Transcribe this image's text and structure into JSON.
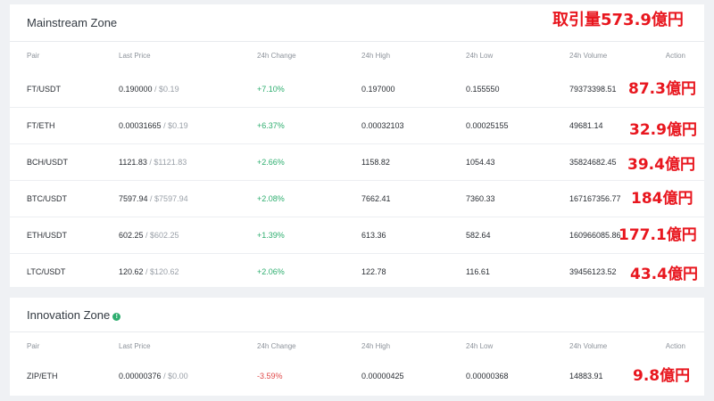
{
  "total_annotation": "取引量573.9億円",
  "mainstream": {
    "title": "Mainstream Zone",
    "headers": {
      "pair": "Pair",
      "last": "Last Price",
      "change": "24h Change",
      "high": "24h High",
      "low": "24h Low",
      "volume": "24h Volume",
      "action": "Action"
    },
    "rows": [
      {
        "pair": "FT/USDT",
        "last": "0.190000",
        "usd": " / $0.19",
        "change": "+7.10%",
        "high": "0.197000",
        "low": "0.155550",
        "volume": "79373398.51",
        "annotation": "87.3億円"
      },
      {
        "pair": "FT/ETH",
        "last": "0.00031665",
        "usd": " / $0.19",
        "change": "+6.37%",
        "high": "0.00032103",
        "low": "0.00025155",
        "volume": "49681.14",
        "annotation": "32.9億円"
      },
      {
        "pair": "BCH/USDT",
        "last": "1121.83",
        "usd": " / $1121.83",
        "change": "+2.66%",
        "high": "1158.82",
        "low": "1054.43",
        "volume": "35824682.45",
        "annotation": "39.4億円"
      },
      {
        "pair": "BTC/USDT",
        "last": "7597.94",
        "usd": " / $7597.94",
        "change": "+2.08%",
        "high": "7662.41",
        "low": "7360.33",
        "volume": "167167356.77",
        "annotation": "184億円"
      },
      {
        "pair": "ETH/USDT",
        "last": "602.25",
        "usd": " / $602.25",
        "change": "+1.39%",
        "high": "613.36",
        "low": "582.64",
        "volume": "160966085.86",
        "annotation": "177.1億円"
      },
      {
        "pair": "LTC/USDT",
        "last": "120.62",
        "usd": " / $120.62",
        "change": "+2.06%",
        "high": "122.78",
        "low": "116.61",
        "volume": "39456123.52",
        "annotation": "43.4億円"
      }
    ]
  },
  "innovation": {
    "title": "Innovation Zone",
    "info_icon": "info-icon",
    "headers": {
      "pair": "Pair",
      "last": "Last Price",
      "change": "24h Change",
      "high": "24h High",
      "low": "24h Low",
      "volume": "24h Volume",
      "action": "Action"
    },
    "rows": [
      {
        "pair": "ZIP/ETH",
        "last": "0.00000376",
        "usd": " / $0.00",
        "change": "-3.59%",
        "high": "0.00000425",
        "low": "0.00000368",
        "volume": "14883.91",
        "annotation": "9.8億円"
      }
    ]
  },
  "colors": {
    "positive": "#2eae6f",
    "negative": "#e04a4a",
    "annotation": "#e8161e"
  }
}
